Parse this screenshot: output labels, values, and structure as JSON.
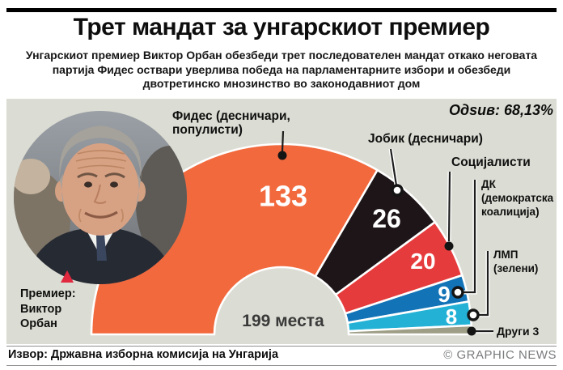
{
  "header": {
    "title": "Трет мандат за унгарскиот премиер",
    "subtitle_lines": [
      "Унгарскиот премиер Виктор Орбан обезбеди трет последователен мандат откако неговата",
      "партија Фидес оствари уверлива победа на парламентарните избори и обезбеди",
      "двотретинско мнозинство во законодавниот дом"
    ]
  },
  "premier": {
    "lines": [
      "Премиер:",
      "Виктор",
      "Орбан"
    ],
    "marker_color": "#e0283f"
  },
  "footer": {
    "source": "Извор: Државна изборна комисија на Унгарија",
    "credit": "© GRAPHIC NEWS"
  },
  "chart_data": {
    "type": "pie",
    "variant": "semicircle-donut-parliament",
    "title": "Трет мандат за унгарскиот премиер",
    "total_seats": 199,
    "total_label": "199 места",
    "turnout": "Одѕив: 68,13%",
    "background": "#dbdcd3",
    "segments": [
      {
        "slug": "fidesz",
        "party": "Фидес",
        "label_lines": [
          "Фидес (десничари,",
          "популисти)"
        ],
        "seats": 133,
        "color": "#f2693d",
        "show_value": true
      },
      {
        "slug": "jobbik",
        "party": "Јобик",
        "label_lines": [
          "Јобик (десничари)"
        ],
        "seats": 26,
        "color": "#1d1517",
        "show_value": true
      },
      {
        "slug": "socialists",
        "party": "Социјалисти",
        "label_lines": [
          "Социјалисти"
        ],
        "seats": 20,
        "color": "#e63b3d",
        "show_value": true
      },
      {
        "slug": "dk",
        "party": "ДК",
        "label_lines": [
          "ДК",
          "(демократска",
          "коалиција)"
        ],
        "seats": 9,
        "color": "#1273b7",
        "show_value": true
      },
      {
        "slug": "lmp",
        "party": "ЛМП",
        "label_lines": [
          "ЛМП",
          "(зелени)"
        ],
        "seats": 8,
        "color": "#23b2d6",
        "show_value": true
      },
      {
        "slug": "others",
        "party": "Други",
        "label_lines": [
          "Други 3"
        ],
        "seats": 3,
        "color": "#9e9e86",
        "show_value": false
      }
    ]
  }
}
